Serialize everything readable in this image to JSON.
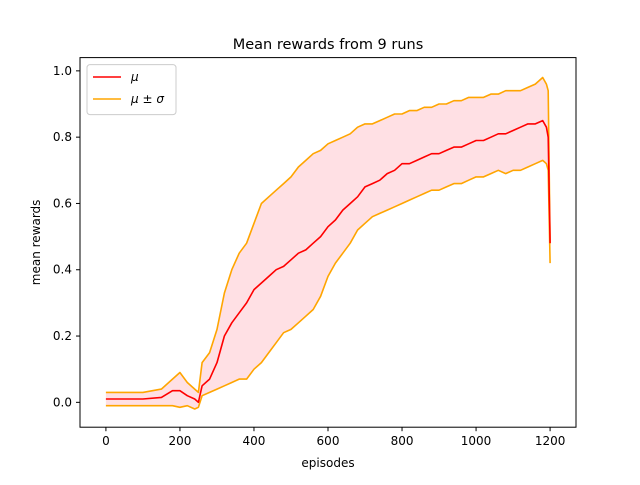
{
  "chart_data": {
    "type": "line",
    "title": "Mean rewards from 9 runs",
    "xlabel": "episodes",
    "ylabel": "mean rewards",
    "xlim": [
      -70,
      1270
    ],
    "ylim": [
      -0.075,
      1.04
    ],
    "xticks": [
      0,
      200,
      400,
      600,
      800,
      1000,
      1200
    ],
    "xtick_labels": [
      "0",
      "200",
      "400",
      "600",
      "800",
      "1000",
      "1200"
    ],
    "yticks": [
      0.0,
      0.2,
      0.4,
      0.6,
      0.8,
      1.0
    ],
    "ytick_labels": [
      "0.0",
      "0.2",
      "0.4",
      "0.6",
      "0.8",
      "1.0"
    ],
    "grid": false,
    "legend_position": "top-left",
    "legend_labels": [
      "μ",
      "μ ± σ"
    ],
    "colors": {
      "mean": "#ff0000",
      "band": "#ffa500",
      "band_fill": "#ffe0e4"
    },
    "x": [
      0,
      50,
      100,
      150,
      180,
      200,
      220,
      240,
      250,
      260,
      280,
      300,
      320,
      340,
      360,
      380,
      400,
      420,
      440,
      460,
      480,
      500,
      520,
      540,
      560,
      580,
      600,
      620,
      640,
      660,
      680,
      700,
      720,
      740,
      760,
      780,
      800,
      820,
      840,
      860,
      880,
      900,
      920,
      940,
      960,
      980,
      1000,
      1020,
      1040,
      1060,
      1080,
      1100,
      1120,
      1140,
      1160,
      1180,
      1190,
      1195,
      1200
    ],
    "series": [
      {
        "name": "μ",
        "values": [
          0.01,
          0.01,
          0.01,
          0.015,
          0.035,
          0.035,
          0.02,
          0.01,
          0.0,
          0.05,
          0.07,
          0.12,
          0.2,
          0.24,
          0.27,
          0.3,
          0.34,
          0.36,
          0.38,
          0.4,
          0.41,
          0.43,
          0.45,
          0.46,
          0.48,
          0.5,
          0.53,
          0.55,
          0.58,
          0.6,
          0.62,
          0.65,
          0.66,
          0.67,
          0.69,
          0.7,
          0.72,
          0.72,
          0.73,
          0.74,
          0.75,
          0.75,
          0.76,
          0.77,
          0.77,
          0.78,
          0.79,
          0.79,
          0.8,
          0.81,
          0.81,
          0.82,
          0.83,
          0.84,
          0.84,
          0.85,
          0.83,
          0.8,
          0.48
        ]
      },
      {
        "name": "μ + σ",
        "values": [
          0.03,
          0.03,
          0.03,
          0.04,
          0.07,
          0.09,
          0.06,
          0.04,
          0.03,
          0.12,
          0.15,
          0.22,
          0.33,
          0.4,
          0.45,
          0.48,
          0.54,
          0.6,
          0.62,
          0.64,
          0.66,
          0.68,
          0.71,
          0.73,
          0.75,
          0.76,
          0.78,
          0.79,
          0.8,
          0.81,
          0.83,
          0.84,
          0.84,
          0.85,
          0.86,
          0.87,
          0.87,
          0.88,
          0.88,
          0.89,
          0.89,
          0.9,
          0.9,
          0.91,
          0.91,
          0.92,
          0.92,
          0.92,
          0.93,
          0.93,
          0.94,
          0.94,
          0.94,
          0.95,
          0.96,
          0.98,
          0.96,
          0.94,
          0.48
        ]
      },
      {
        "name": "μ − σ",
        "values": [
          -0.01,
          -0.01,
          -0.01,
          -0.01,
          -0.01,
          -0.015,
          -0.01,
          -0.02,
          -0.015,
          0.02,
          0.03,
          0.04,
          0.05,
          0.06,
          0.07,
          0.07,
          0.1,
          0.12,
          0.15,
          0.18,
          0.21,
          0.22,
          0.24,
          0.26,
          0.28,
          0.32,
          0.38,
          0.42,
          0.45,
          0.48,
          0.52,
          0.54,
          0.56,
          0.57,
          0.58,
          0.59,
          0.6,
          0.61,
          0.62,
          0.63,
          0.64,
          0.64,
          0.65,
          0.66,
          0.66,
          0.67,
          0.68,
          0.68,
          0.69,
          0.7,
          0.69,
          0.7,
          0.7,
          0.71,
          0.72,
          0.73,
          0.72,
          0.7,
          0.42
        ]
      }
    ]
  }
}
